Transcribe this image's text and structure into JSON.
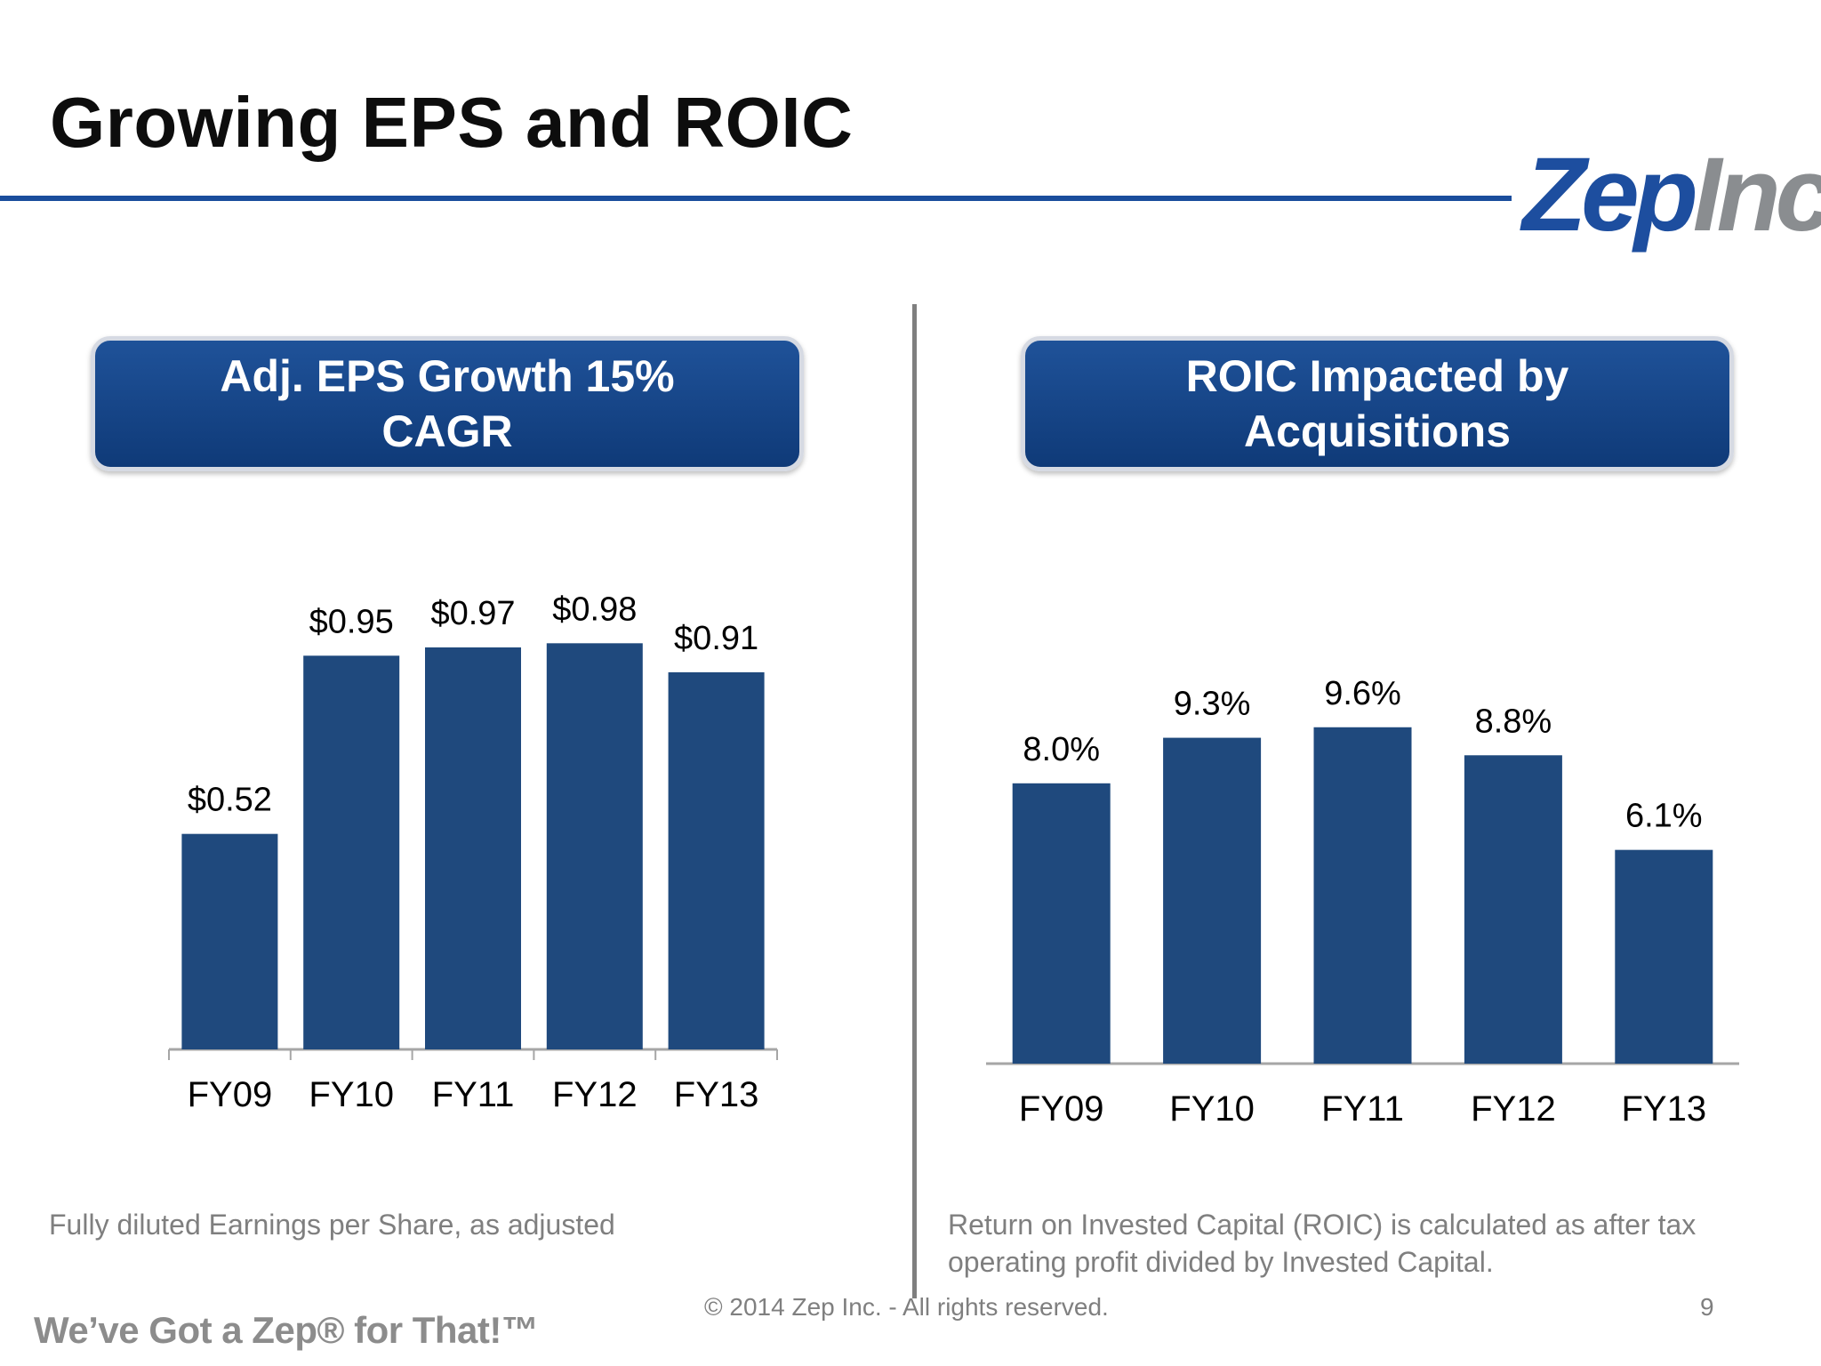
{
  "slide": {
    "title": "Growing EPS and ROIC",
    "logo_main": "Zep",
    "logo_suffix": "Inc",
    "tagline": "We’ve Got a Zep® for That!™",
    "copyright": "© 2014  Zep Inc. - All rights reserved.",
    "page_number": "9"
  },
  "panels": {
    "left": {
      "header": "Adj. EPS Growth 15% CAGR",
      "footnote": "Fully diluted Earnings per Share, as adjusted"
    },
    "right": {
      "header": "ROIC Impacted by Acquisitions",
      "footnote": "Return on Invested Capital (ROIC) is calculated as after tax operating profit divided by Invested Capital."
    }
  },
  "colors": {
    "bar": "#1f497d",
    "title_rule": "#1a4d9c",
    "axis": "#a6a6a6"
  },
  "chart_data": [
    {
      "type": "bar",
      "title": "",
      "categories": [
        "FY09",
        "FY10",
        "FY11",
        "FY12",
        "FY13"
      ],
      "values": [
        0.52,
        0.95,
        0.97,
        0.98,
        0.91
      ],
      "data_labels": [
        "$0.52",
        "$0.95",
        "$0.97",
        "$0.98",
        "$0.91"
      ],
      "xlabel": "",
      "ylabel": "",
      "ylim": [
        0,
        1.1
      ],
      "grid": false,
      "legend": "none"
    },
    {
      "type": "bar",
      "title": "",
      "categories": [
        "FY09",
        "FY10",
        "FY11",
        "FY12",
        "FY13"
      ],
      "values": [
        8.0,
        9.3,
        9.6,
        8.8,
        6.1
      ],
      "data_labels": [
        "8.0%",
        "9.3%",
        "9.6%",
        "8.8%",
        "6.1%"
      ],
      "xlabel": "",
      "ylabel": "",
      "ylim": [
        0,
        11
      ],
      "grid": false,
      "legend": "none"
    }
  ]
}
